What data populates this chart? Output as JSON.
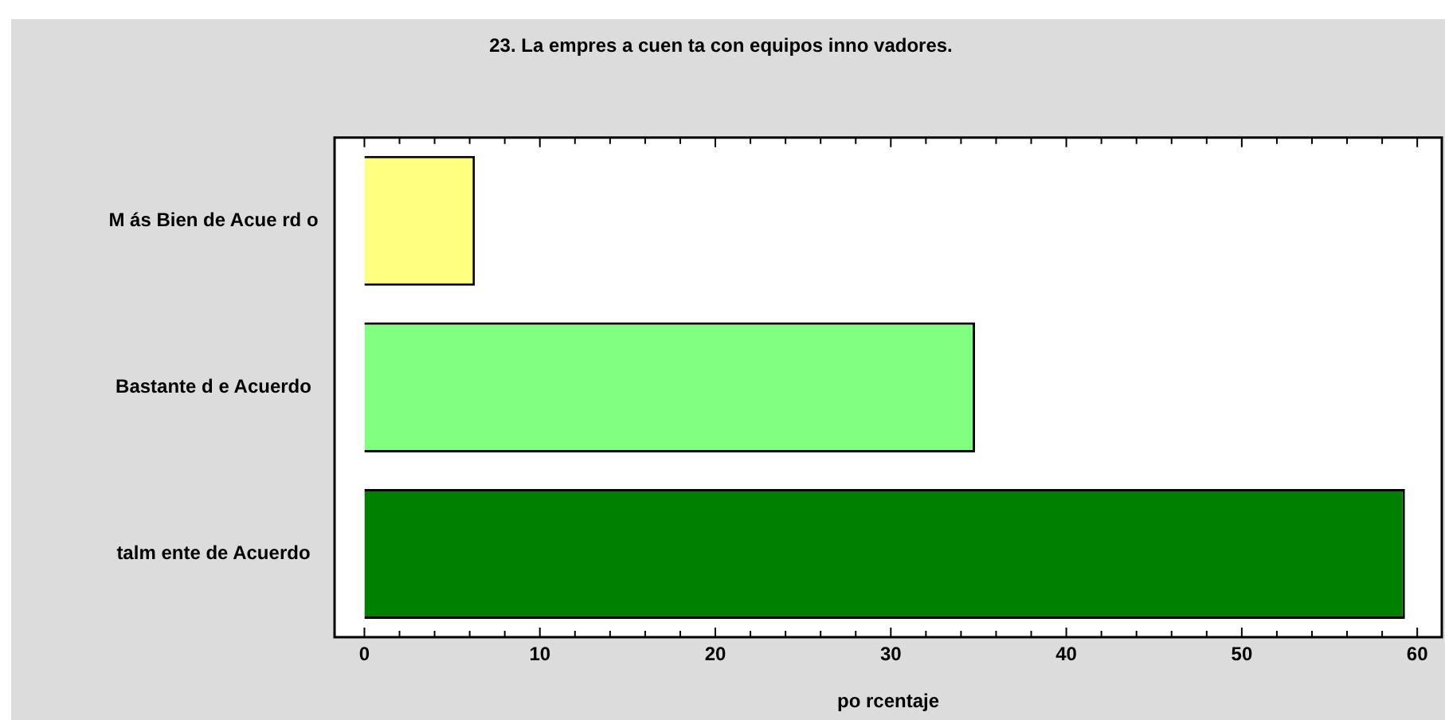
{
  "chart_data": {
    "type": "bar",
    "orientation": "horizontal",
    "title": "23. La empres a cuen ta con equipos inno vadores.",
    "xlabel": "po rcentaje",
    "categories": [
      "M ás Bien de Acue rd o",
      "Bastante d e Acuerdo",
      "talm ente de Acuerdo"
    ],
    "values": [
      6.3,
      34.8,
      59.3
    ],
    "colors": [
      "#ffff80",
      "#80ff80",
      "#008000"
    ],
    "xlim": [
      -1.7,
      61.4
    ],
    "xticks": [
      0,
      {
        "value": 2,
        "label": null
      },
      {
        "value": 4,
        "label": null
      },
      {
        "value": 6,
        "label": null
      },
      {
        "value": 8,
        "label": null
      },
      10,
      {
        "value": 12,
        "label": null
      },
      {
        "value": 14,
        "label": null
      },
      {
        "value": 16,
        "label": null
      },
      {
        "value": 18,
        "label": null
      },
      20,
      {
        "value": 22,
        "label": null
      },
      {
        "value": 24,
        "label": null
      },
      {
        "value": 26,
        "label": null
      },
      {
        "value": 28,
        "label": null
      },
      30,
      {
        "value": 32,
        "label": null
      },
      {
        "value": 34,
        "label": null
      },
      {
        "value": 36,
        "label": null
      },
      {
        "value": 38,
        "label": null
      },
      40,
      {
        "value": 42,
        "label": null
      },
      {
        "value": 44,
        "label": null
      },
      {
        "value": 46,
        "label": null
      },
      {
        "value": 48,
        "label": null
      },
      50,
      {
        "value": 52,
        "label": null
      },
      {
        "value": 54,
        "label": null
      },
      {
        "value": 56,
        "label": null
      },
      {
        "value": 58,
        "label": null
      },
      60
    ],
    "grid": false,
    "legend": false
  }
}
